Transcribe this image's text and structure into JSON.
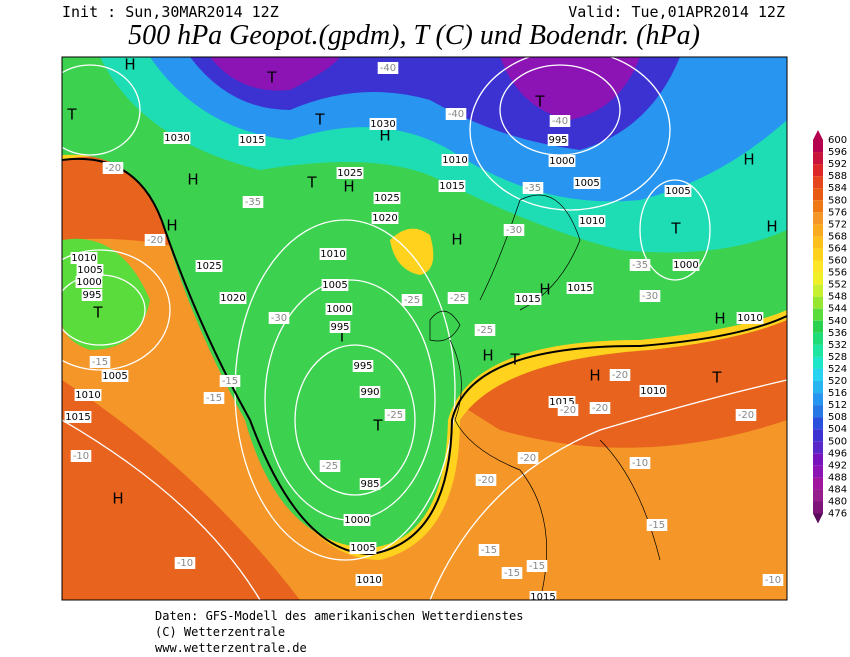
{
  "header": {
    "init": "Init : Sun,30MAR2014 12Z",
    "valid": "Valid: Tue,01APR2014 12Z",
    "title": "500 hPa Geopot.(gpdm), T (C) und Bodendr. (hPa)"
  },
  "colorbar": {
    "ticks": [
      600,
      596,
      592,
      588,
      584,
      580,
      576,
      572,
      568,
      564,
      560,
      556,
      552,
      548,
      544,
      540,
      536,
      532,
      528,
      524,
      520,
      516,
      512,
      508,
      504,
      500,
      496,
      492,
      488,
      484,
      480,
      476
    ],
    "colors": [
      "#b4004e",
      "#c8143c",
      "#dc2828",
      "#e6461e",
      "#e85a14",
      "#f07814",
      "#f59628",
      "#faaa1e",
      "#ffc01e",
      "#ffd21e",
      "#ffe628",
      "#f0f028",
      "#c8f032",
      "#96e632",
      "#5adc3c",
      "#28d250",
      "#1edc78",
      "#1ee6a0",
      "#1ee6c8",
      "#28d2f0",
      "#28b4f0",
      "#2896f0",
      "#2878e6",
      "#2850dc",
      "#3c32d2",
      "#5a28c8",
      "#7814be",
      "#8c14b4",
      "#a014a0",
      "#961e8c",
      "#7d1478",
      "#5a0a5a"
    ]
  },
  "map_labels": [
    "H",
    "T",
    "1030",
    "H",
    "H",
    "T",
    "H",
    "T",
    "1015",
    "T",
    "H",
    "1030",
    "T",
    "H",
    "1025",
    "1025",
    "1020",
    "H",
    "T",
    "995",
    "1000",
    "1005",
    "T",
    "1005",
    "1000",
    "H",
    "H",
    "H",
    "T",
    "T",
    "995",
    "995",
    "990",
    "T",
    "985",
    "1000",
    "1005",
    "1010",
    "1010",
    "1005",
    "1000",
    "1025",
    "1020",
    "995",
    "1000",
    "1005",
    "1010",
    "1010",
    "1015",
    "1005",
    "H",
    "H",
    "T",
    "H",
    "1015",
    "1015",
    "1010",
    "1015",
    "1010",
    "1010",
    "1010",
    "1015",
    "1015",
    "-40",
    "-40",
    "-40",
    "-35",
    "-35",
    "-35",
    "-30",
    "-30",
    "-30",
    "-25",
    "-25",
    "-25",
    "-25",
    "-25",
    "-20",
    "-20",
    "-20",
    "-20",
    "-20",
    "-20",
    "-20",
    "-20",
    "-15",
    "-15",
    "-15",
    "-15",
    "-15",
    "-15",
    "-15",
    "-10",
    "-10",
    "-10",
    "-10"
  ],
  "footer": [
    "Daten: GFS-Modell des amerikanischen Wetterdienstes",
    "(C) Wetterzentrale",
    "www.wetterzentrale.de"
  ]
}
